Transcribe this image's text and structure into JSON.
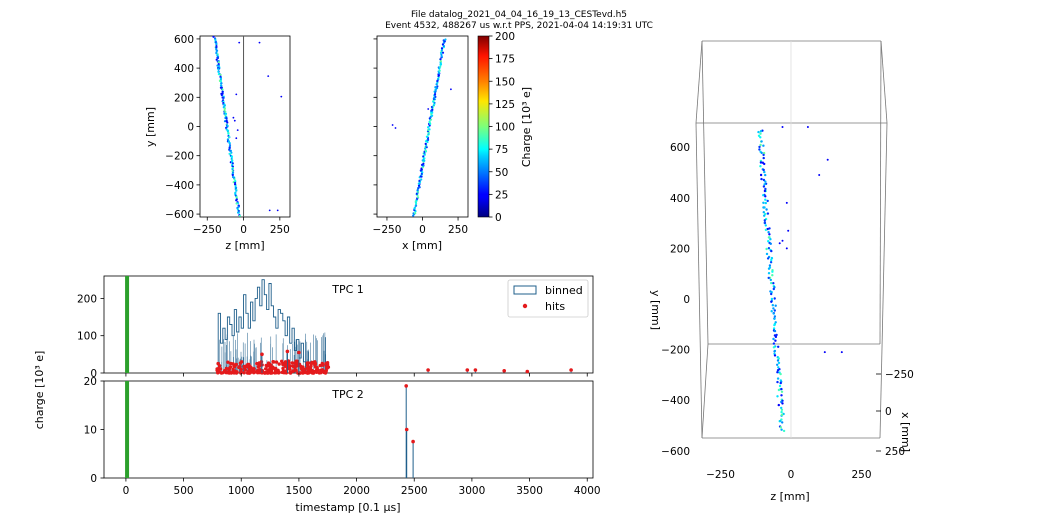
{
  "figure": {
    "title_line1": "File datalog_2021_04_04_16_19_13_CESTevd.h5",
    "title_line2": "Event 4532, 488267 us w.r.t PPS, 2021-04-04 14:19:31 UTC"
  },
  "colorbar": {
    "label": "Charge [10³ e]",
    "range": [
      0,
      200
    ],
    "colormap": "jet",
    "ticks": [
      "0",
      "25",
      "50",
      "75",
      "100",
      "125",
      "150",
      "175",
      "200"
    ]
  },
  "chart_data": [
    {
      "id": "zy_projection",
      "type": "scatter",
      "xlabel": "z [mm]",
      "ylabel": "y [mm]",
      "xlim": [
        -300,
        320
      ],
      "ylim": [
        -620,
        620
      ],
      "xticks": [
        "−250",
        "0",
        "250"
      ],
      "yticks": [
        "−600",
        "−400",
        "−200",
        "0",
        "200",
        "400",
        "600"
      ],
      "vline_x": 0,
      "track": {
        "from": [
          -200,
          610
        ],
        "to": [
          -30,
          -610
        ],
        "n": 170
      },
      "points": [
        [
          -30,
          575
        ],
        [
          110,
          575
        ],
        [
          170,
          345
        ],
        [
          260,
          205
        ],
        [
          -50,
          220
        ],
        [
          -40,
          -25
        ],
        [
          -50,
          -80
        ],
        [
          180,
          -575
        ],
        [
          235,
          -575
        ],
        [
          -70,
          60
        ],
        [
          -60,
          40
        ]
      ]
    },
    {
      "id": "xy_projection",
      "type": "scatter",
      "xlabel": "x [mm]",
      "ylabel": "",
      "xlim": [
        -320,
        320
      ],
      "ylim": [
        -620,
        620
      ],
      "xticks": [
        "−250",
        "0",
        "250"
      ],
      "yticks": [],
      "track": {
        "from": [
          -60,
          -610
        ],
        "to": [
          155,
          600
        ],
        "n": 170
      },
      "points": [
        [
          -210,
          10
        ],
        [
          -190,
          -10
        ],
        [
          200,
          255
        ],
        [
          40,
          120
        ]
      ]
    },
    {
      "id": "tpc1_waveform",
      "type": "bar",
      "title": "TPC 1",
      "xlim": [
        -190,
        4050
      ],
      "ylim": [
        0,
        260
      ],
      "yticks": [
        "0",
        "100",
        "200"
      ],
      "legend": {
        "position": "top-right",
        "entries": [
          "binned",
          "hits"
        ]
      },
      "trigger_x": 10,
      "binned": {
        "range": [
          800,
          1750
        ],
        "bin_width": 20,
        "values": [
          160,
          80,
          120,
          90,
          150,
          130,
          100,
          170,
          110,
          150,
          120,
          210,
          160,
          120,
          190,
          140,
          200,
          230,
          180,
          250,
          210,
          170,
          240,
          180,
          150,
          120,
          170,
          160,
          140,
          100,
          150,
          80,
          120,
          60,
          90,
          40,
          80,
          30
        ]
      },
      "hit_band": {
        "range": [
          790,
          1760
        ],
        "charge_min": 0,
        "charge_max": 60,
        "n": 260
      },
      "isolated_hits": [
        [
          2620,
          8
        ],
        [
          2960,
          8
        ],
        [
          3030,
          8
        ],
        [
          3280,
          6
        ],
        [
          3480,
          4
        ],
        [
          3860,
          8
        ],
        [
          1400,
          58
        ],
        [
          1500,
          55
        ],
        [
          1180,
          50
        ]
      ]
    },
    {
      "id": "tpc2_waveform",
      "type": "bar",
      "title": "TPC 2",
      "xlabel": "timestamp [0.1 μs]",
      "ylabel": "charge [10³ e]",
      "xlim": [
        -190,
        4050
      ],
      "ylim": [
        0,
        20
      ],
      "xticks": [
        "0",
        "500",
        "1000",
        "1500",
        "2000",
        "2500",
        "3000",
        "3500",
        "4000"
      ],
      "yticks": [
        "0",
        "10",
        "20"
      ],
      "trigger_x": 10,
      "spikes": [
        [
          2430,
          19
        ],
        [
          2435,
          10
        ],
        [
          2490,
          7.5
        ]
      ]
    },
    {
      "id": "view_3d",
      "type": "scatter",
      "xlabel": "z [mm]",
      "ylabel": "y [mm]",
      "depth_label": "x [mm]",
      "zticks": [
        "−250",
        "0",
        "250"
      ],
      "yticks": [
        "−600",
        "−400",
        "−200",
        "0",
        "200",
        "400",
        "600"
      ],
      "xdepth_ticks": [
        "−250",
        "0",
        "250"
      ],
      "track": {
        "from": [
          -110,
          670
        ],
        "to": [
          -30,
          -520
        ],
        "n": 170
      },
      "points": [
        [
          -30,
          680
        ],
        [
          60,
          680
        ],
        [
          130,
          550
        ],
        [
          100,
          490
        ],
        [
          -15,
          380
        ],
        [
          -10,
          270
        ],
        [
          -15,
          200
        ],
        [
          180,
          -210
        ],
        [
          120,
          -210
        ],
        [
          -40,
          220
        ],
        [
          -30,
          230
        ]
      ]
    }
  ]
}
